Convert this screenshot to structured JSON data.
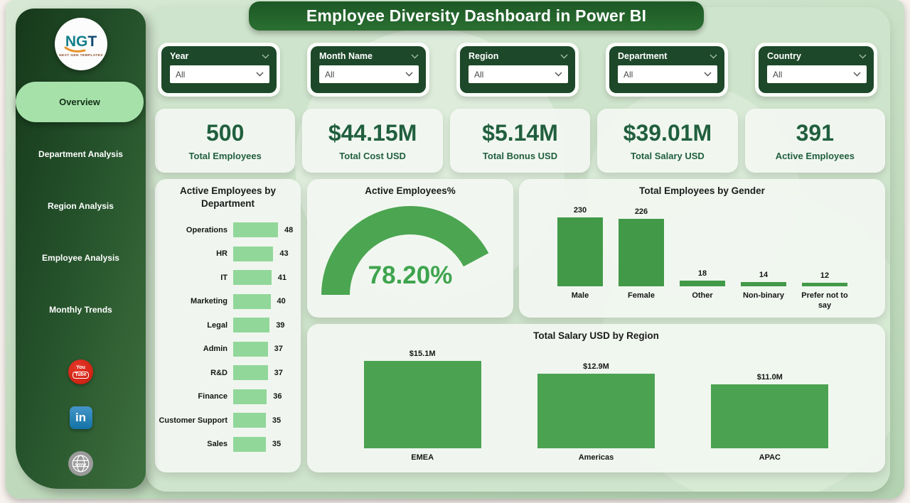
{
  "title": "Employee Diversity Dashboard in Power BI",
  "logo": {
    "text": "NGT",
    "subtext": "NEXT GEN TEMPLATES"
  },
  "sidebar": {
    "active": "Overview",
    "items": [
      "Overview",
      "Department Analysis",
      "Region Analysis",
      "Employee Analysis",
      "Monthly Trends"
    ],
    "social": [
      "youtube",
      "linkedin",
      "website"
    ]
  },
  "filters": [
    {
      "label": "Year",
      "value": "All"
    },
    {
      "label": "Month Name",
      "value": "All"
    },
    {
      "label": "Region",
      "value": "All"
    },
    {
      "label": "Department",
      "value": "All"
    },
    {
      "label": "Country",
      "value": "All"
    }
  ],
  "kpis": [
    {
      "value": "500",
      "label": "Total Employees"
    },
    {
      "value": "$44.15M",
      "label": "Total Cost USD"
    },
    {
      "value": "$5.14M",
      "label": "Total Bonus USD"
    },
    {
      "value": "$39.01M",
      "label": "Total Salary USD"
    },
    {
      "value": "391",
      "label": "Active Employees"
    }
  ],
  "chart_data": [
    {
      "type": "bar",
      "orientation": "horizontal",
      "title": "Active Employees by Department",
      "categories": [
        "Operations",
        "HR",
        "IT",
        "Marketing",
        "Legal",
        "Admin",
        "R&D",
        "Finance",
        "Customer Support",
        "Sales"
      ],
      "values": [
        48,
        43,
        41,
        40,
        39,
        37,
        37,
        36,
        35,
        35
      ],
      "xlim": [
        0,
        48
      ],
      "bar_color": "#92d79a",
      "grid": false,
      "data_labels": true
    },
    {
      "type": "gauge",
      "title": "Active Employees%",
      "value": 78.2,
      "value_label": "78.20%",
      "color": "#4ca551",
      "text_color": "#3fa44f"
    },
    {
      "type": "bar",
      "orientation": "vertical",
      "title": "Total Employees by Gender",
      "categories": [
        "Male",
        "Female",
        "Other",
        "Non-binary",
        "Prefer not to say"
      ],
      "values": [
        230,
        226,
        18,
        14,
        12
      ],
      "ylim": [
        0,
        230
      ],
      "bar_color": "#429a48",
      "grid": false,
      "data_labels": true
    },
    {
      "type": "bar",
      "orientation": "vertical",
      "title": "Total Salary USD by Region",
      "categories": [
        "EMEA",
        "Americas",
        "APAC"
      ],
      "values": [
        15.1,
        12.9,
        11.0
      ],
      "value_labels": [
        "$15.1M",
        "$12.9M",
        "$11.0M"
      ],
      "ylim": [
        0,
        15.1
      ],
      "bar_color": "#4ba251",
      "grid": false,
      "data_labels": true
    }
  ],
  "colors": {
    "sidebar_dark": "#1d4829",
    "accent_green": "#4ca551",
    "kpi_text": "#215f3e",
    "pill_green": "#a6e1a9"
  }
}
